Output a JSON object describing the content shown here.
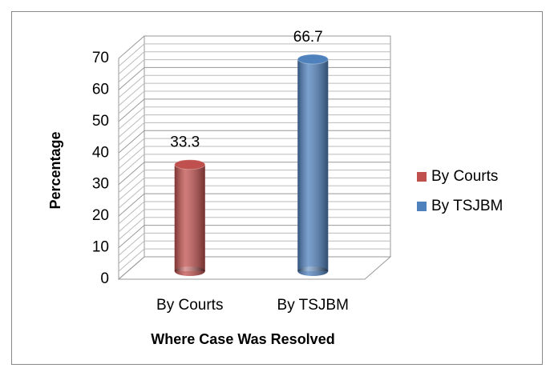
{
  "chart_data": {
    "type": "bar3d",
    "categories": [
      "By Courts",
      "By TSJBM"
    ],
    "series": [
      {
        "name": "By Courts",
        "color": "#c0504d",
        "values": [
          33.3,
          null
        ]
      },
      {
        "name": "By TSJBM",
        "color": "#4f81bd",
        "values": [
          null,
          66.7
        ]
      }
    ],
    "ylabel": "Percentage",
    "xlabel": "Where Case Was Resolved",
    "ylim": [
      0,
      70
    ],
    "yticks": [
      0,
      10,
      20,
      30,
      40,
      50,
      60,
      70
    ],
    "grid": true,
    "legend": "right"
  }
}
